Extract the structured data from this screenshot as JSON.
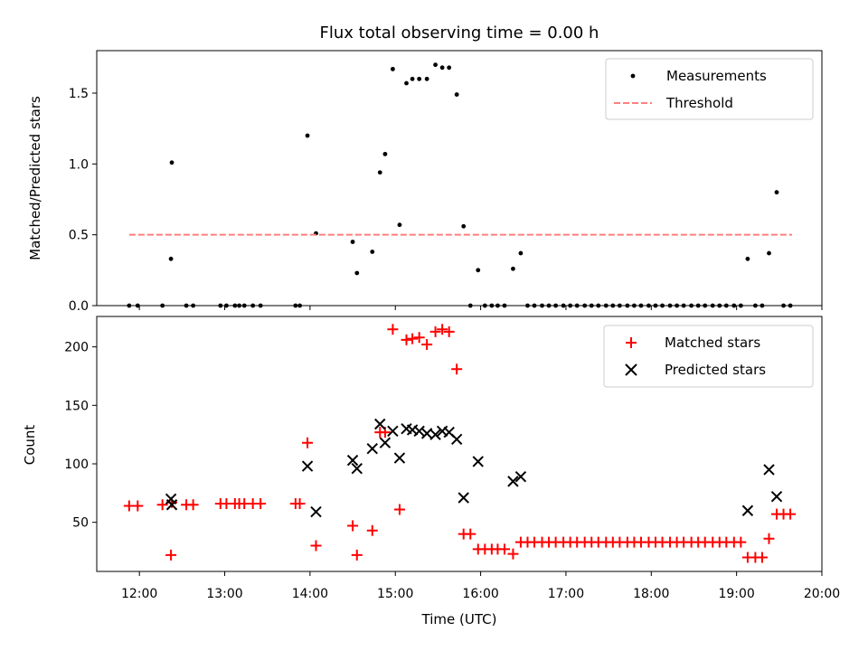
{
  "figure": {
    "title": "Flux total observing time = 0.00 h",
    "xlabel": "Time (UTC)",
    "x_tick_labels": [
      "12:00",
      "13:00",
      "14:00",
      "15:00",
      "16:00",
      "17:00",
      "18:00",
      "19:00",
      "20:00"
    ]
  },
  "chart_data": [
    {
      "type": "scatter",
      "ylabel": "Matched/Predicted stars",
      "xlim": [
        11.5,
        20.0
      ],
      "ylim": [
        0,
        1.8
      ],
      "y_ticks": [
        0.0,
        0.5,
        1.0,
        1.5
      ],
      "y_tick_labels": [
        "0.0",
        "0.5",
        "1.0",
        "1.5"
      ],
      "legend_position": "upper right",
      "series": [
        {
          "name": "Measurements",
          "kind": "dots",
          "color": "#000000",
          "points": [
            [
              11.88,
              0
            ],
            [
              11.98,
              0
            ],
            [
              12.27,
              0
            ],
            [
              12.37,
              0.33
            ],
            [
              12.38,
              1.01
            ],
            [
              12.55,
              0
            ],
            [
              12.63,
              0
            ],
            [
              12.95,
              0
            ],
            [
              13.02,
              0
            ],
            [
              13.12,
              0
            ],
            [
              13.17,
              0
            ],
            [
              13.23,
              0
            ],
            [
              13.33,
              0
            ],
            [
              13.42,
              0
            ],
            [
              13.83,
              0
            ],
            [
              13.88,
              0
            ],
            [
              13.97,
              1.2
            ],
            [
              14.07,
              0.51
            ],
            [
              14.5,
              0.45
            ],
            [
              14.55,
              0.23
            ],
            [
              14.73,
              0.38
            ],
            [
              14.82,
              0.94
            ],
            [
              14.88,
              1.07
            ],
            [
              14.97,
              1.67
            ],
            [
              15.05,
              0.57
            ],
            [
              15.13,
              1.57
            ],
            [
              15.2,
              1.6
            ],
            [
              15.28,
              1.6
            ],
            [
              15.37,
              1.6
            ],
            [
              15.47,
              1.7
            ],
            [
              15.55,
              1.68
            ],
            [
              15.63,
              1.68
            ],
            [
              15.72,
              1.49
            ],
            [
              15.8,
              0.56
            ],
            [
              15.88,
              0
            ],
            [
              15.97,
              0.25
            ],
            [
              16.05,
              0
            ],
            [
              16.13,
              0
            ],
            [
              16.2,
              0
            ],
            [
              16.28,
              0
            ],
            [
              16.38,
              0.26
            ],
            [
              16.47,
              0.37
            ],
            [
              16.55,
              0
            ],
            [
              16.63,
              0
            ],
            [
              16.72,
              0
            ],
            [
              16.8,
              0
            ],
            [
              16.88,
              0
            ],
            [
              16.97,
              0
            ],
            [
              17.05,
              0
            ],
            [
              17.13,
              0
            ],
            [
              17.22,
              0
            ],
            [
              17.3,
              0
            ],
            [
              17.38,
              0
            ],
            [
              17.47,
              0
            ],
            [
              17.55,
              0
            ],
            [
              17.63,
              0
            ],
            [
              17.72,
              0
            ],
            [
              17.8,
              0
            ],
            [
              17.88,
              0
            ],
            [
              17.97,
              0
            ],
            [
              18.05,
              0
            ],
            [
              18.13,
              0
            ],
            [
              18.22,
              0
            ],
            [
              18.3,
              0
            ],
            [
              18.38,
              0
            ],
            [
              18.47,
              0
            ],
            [
              18.55,
              0
            ],
            [
              18.63,
              0
            ],
            [
              18.72,
              0
            ],
            [
              18.8,
              0
            ],
            [
              18.88,
              0
            ],
            [
              18.97,
              0
            ],
            [
              19.05,
              0
            ],
            [
              19.13,
              0.33
            ],
            [
              19.22,
              0
            ],
            [
              19.3,
              0
            ],
            [
              19.38,
              0.37
            ],
            [
              19.47,
              0.8
            ],
            [
              19.55,
              0
            ],
            [
              19.63,
              0
            ]
          ]
        },
        {
          "name": "Threshold",
          "kind": "dashed-line",
          "color": "#ff7f7f",
          "points": [
            [
              11.88,
              0.5
            ],
            [
              19.65,
              0.5
            ]
          ]
        }
      ]
    },
    {
      "type": "scatter",
      "ylabel": "Count",
      "xlim": [
        11.5,
        20.0
      ],
      "ylim": [
        8,
        226
      ],
      "y_ticks": [
        50,
        100,
        150,
        200
      ],
      "y_tick_labels": [
        "50",
        "100",
        "150",
        "200"
      ],
      "legend_position": "upper right",
      "series": [
        {
          "name": "Matched stars",
          "kind": "plus",
          "color": "#ff0000",
          "points": [
            [
              11.88,
              64
            ],
            [
              11.98,
              64
            ],
            [
              12.27,
              65
            ],
            [
              12.37,
              22
            ],
            [
              12.38,
              67
            ],
            [
              12.55,
              65
            ],
            [
              12.63,
              65
            ],
            [
              12.95,
              66
            ],
            [
              13.02,
              66
            ],
            [
              13.12,
              66
            ],
            [
              13.17,
              66
            ],
            [
              13.23,
              66
            ],
            [
              13.33,
              66
            ],
            [
              13.42,
              66
            ],
            [
              13.83,
              66
            ],
            [
              13.88,
              66
            ],
            [
              13.97,
              118
            ],
            [
              14.07,
              30
            ],
            [
              14.5,
              47
            ],
            [
              14.55,
              22
            ],
            [
              14.73,
              43
            ],
            [
              14.82,
              127
            ],
            [
              14.88,
              127
            ],
            [
              14.97,
              215
            ],
            [
              15.05,
              61
            ],
            [
              15.13,
              206
            ],
            [
              15.2,
              207
            ],
            [
              15.28,
              208
            ],
            [
              15.37,
              202
            ],
            [
              15.47,
              213
            ],
            [
              15.55,
              215
            ],
            [
              15.63,
              213
            ],
            [
              15.72,
              181
            ],
            [
              15.8,
              40
            ],
            [
              15.88,
              40
            ],
            [
              15.97,
              27
            ],
            [
              16.05,
              27
            ],
            [
              16.13,
              27
            ],
            [
              16.2,
              27
            ],
            [
              16.28,
              27
            ],
            [
              16.38,
              23
            ],
            [
              16.47,
              33
            ],
            [
              16.55,
              33
            ],
            [
              16.63,
              33
            ],
            [
              16.72,
              33
            ],
            [
              16.8,
              33
            ],
            [
              16.88,
              33
            ],
            [
              16.97,
              33
            ],
            [
              17.05,
              33
            ],
            [
              17.13,
              33
            ],
            [
              17.22,
              33
            ],
            [
              17.3,
              33
            ],
            [
              17.38,
              33
            ],
            [
              17.47,
              33
            ],
            [
              17.55,
              33
            ],
            [
              17.63,
              33
            ],
            [
              17.72,
              33
            ],
            [
              17.8,
              33
            ],
            [
              17.88,
              33
            ],
            [
              17.97,
              33
            ],
            [
              18.05,
              33
            ],
            [
              18.13,
              33
            ],
            [
              18.22,
              33
            ],
            [
              18.3,
              33
            ],
            [
              18.38,
              33
            ],
            [
              18.47,
              33
            ],
            [
              18.55,
              33
            ],
            [
              18.63,
              33
            ],
            [
              18.72,
              33
            ],
            [
              18.8,
              33
            ],
            [
              18.88,
              33
            ],
            [
              18.97,
              33
            ],
            [
              19.05,
              33
            ],
            [
              19.13,
              20
            ],
            [
              19.22,
              20
            ],
            [
              19.3,
              20
            ],
            [
              19.38,
              36
            ],
            [
              19.47,
              57
            ],
            [
              19.55,
              57
            ],
            [
              19.63,
              57
            ]
          ]
        },
        {
          "name": "Predicted stars",
          "kind": "x",
          "color": "#000000",
          "points": [
            [
              12.37,
              70
            ],
            [
              12.38,
              65
            ],
            [
              13.97,
              98
            ],
            [
              14.07,
              59
            ],
            [
              14.5,
              103
            ],
            [
              14.55,
              96
            ],
            [
              14.73,
              113
            ],
            [
              14.82,
              134
            ],
            [
              14.88,
              118
            ],
            [
              14.97,
              128
            ],
            [
              15.05,
              105
            ],
            [
              15.13,
              130
            ],
            [
              15.2,
              129
            ],
            [
              15.28,
              128
            ],
            [
              15.37,
              126
            ],
            [
              15.47,
              125
            ],
            [
              15.55,
              128
            ],
            [
              15.63,
              127
            ],
            [
              15.72,
              121
            ],
            [
              15.8,
              71
            ],
            [
              15.97,
              102
            ],
            [
              16.38,
              85
            ],
            [
              16.47,
              89
            ],
            [
              19.13,
              60
            ],
            [
              19.38,
              95
            ],
            [
              19.47,
              72
            ]
          ]
        }
      ]
    }
  ]
}
